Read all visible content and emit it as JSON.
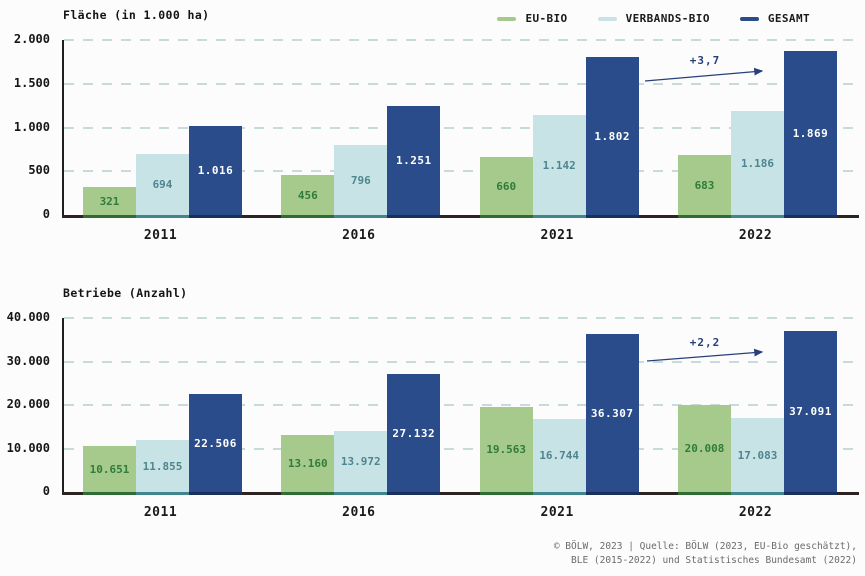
{
  "legend": [
    {
      "label": "EU-BIO",
      "color": "#a6ca8c"
    },
    {
      "label": "VERBANDS-BIO",
      "color": "#c8e3e5"
    },
    {
      "label": "GESAMT",
      "color": "#2a4c8a"
    }
  ],
  "chart_data": [
    {
      "type": "bar",
      "title": "Fläche (in 1.000 ha)",
      "categories": [
        "2011",
        "2016",
        "2021",
        "2022"
      ],
      "series": [
        {
          "name": "EU-BIO",
          "values": [
            321,
            456,
            660,
            683
          ],
          "labels": [
            "321",
            "456",
            "660",
            "683"
          ]
        },
        {
          "name": "VERBANDS-BIO",
          "values": [
            694,
            796,
            1142,
            1186
          ],
          "labels": [
            "694",
            "796",
            "1.142",
            "1.186"
          ]
        },
        {
          "name": "GESAMT",
          "values": [
            1016,
            1251,
            1802,
            1869
          ],
          "labels": [
            "1.016",
            "1.251",
            "1.802",
            "1.869"
          ]
        }
      ],
      "ylim": [
        0,
        2000
      ],
      "yticks": [
        "2.000",
        "1.500",
        "1.000",
        "500",
        "0"
      ],
      "grid": "dashed-horizontal",
      "legend_position": "top-right",
      "annotation": "+3,7"
    },
    {
      "type": "bar",
      "title": "Betriebe (Anzahl)",
      "categories": [
        "2011",
        "2016",
        "2021",
        "2022"
      ],
      "series": [
        {
          "name": "EU-BIO",
          "values": [
            10651,
            13160,
            19563,
            20008
          ],
          "labels": [
            "10.651",
            "13.160",
            "19.563",
            "20.008"
          ]
        },
        {
          "name": "VERBANDS-BIO",
          "values": [
            11855,
            13972,
            16744,
            17083
          ],
          "labels": [
            "11.855",
            "13.972",
            "16.744",
            "17.083"
          ]
        },
        {
          "name": "GESAMT",
          "values": [
            22506,
            27132,
            36307,
            37091
          ],
          "labels": [
            "22.506",
            "27.132",
            "36.307",
            "37.091"
          ]
        }
      ],
      "ylim": [
        0,
        40000
      ],
      "yticks": [
        "40.000",
        "30.000",
        "20.000",
        "10.000",
        "0"
      ],
      "grid": "dashed-horizontal",
      "legend_position": "none",
      "annotation": "+2,2"
    }
  ],
  "footer": {
    "line1": "© BÖLW, 2023 | Quelle: BÖLW (2023, EU-Bio geschätzt),",
    "line2": "BLE (2015-2022) und Statistisches Bundesamt (2022)"
  }
}
